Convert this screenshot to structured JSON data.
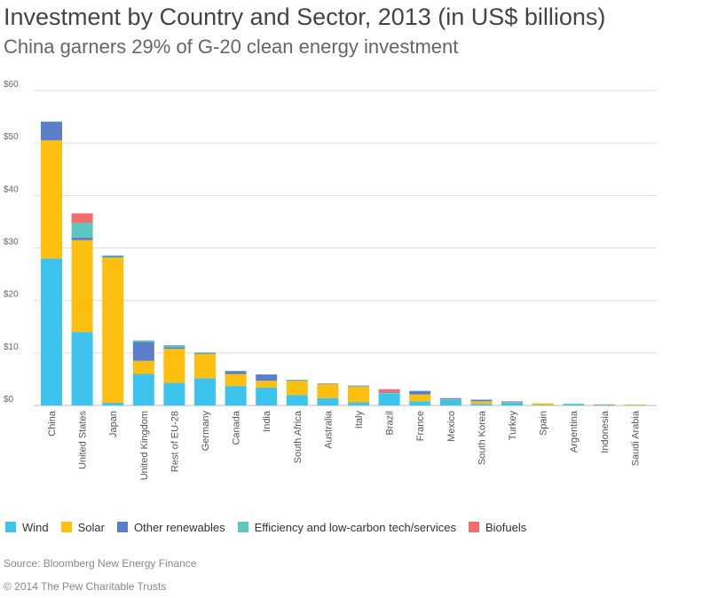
{
  "header": {
    "title": "Investment by Country and Sector, 2013 (in US$ billions)",
    "subtitle": "China garners 29% of G-20 clean energy investment"
  },
  "footer": {
    "source": "Source: Bloomberg New Energy Finance",
    "copyright": "© 2014 The Pew Charitable Trusts"
  },
  "colors": {
    "wind": "#3cc3ee",
    "solar": "#fcbf0f",
    "other": "#5a7ec9",
    "efficiency": "#5cc6bf",
    "biofuels": "#f26c6c"
  },
  "chart_data": {
    "type": "bar",
    "stacked": true,
    "categories": [
      "China",
      "United States",
      "Japan",
      "United Kingdom",
      "Rest of EU-28",
      "Germany",
      "Canada",
      "India",
      "South Africa",
      "Australia",
      "Italy",
      "Brazil",
      "France",
      "Mexico",
      "South Korea",
      "Turkey",
      "Spain",
      "Argentina",
      "Indonesia",
      "Saudi Arabia"
    ],
    "series": [
      {
        "name": "Wind",
        "color_key": "wind",
        "values": [
          28,
          14,
          0.5,
          6,
          4.3,
          5.2,
          3.7,
          3.4,
          2,
          1.4,
          0.6,
          2.3,
          0.8,
          1.1,
          0.3,
          0.6,
          0.1,
          0.3,
          0.05,
          0.05
        ]
      },
      {
        "name": "Solar",
        "color_key": "solar",
        "values": [
          22.5,
          17.5,
          27.7,
          2.5,
          6.5,
          4.6,
          2.3,
          1.3,
          2.7,
          2.7,
          3,
          0.1,
          1.3,
          0.1,
          0.5,
          0.1,
          0.3,
          0,
          0.1,
          0.15
        ]
      },
      {
        "name": "Other renewables",
        "color_key": "other",
        "values": [
          3.5,
          0.5,
          0.2,
          3.6,
          0.3,
          0.1,
          0.5,
          1.2,
          0.1,
          0.1,
          0.1,
          0.2,
          0.6,
          0.2,
          0.3,
          0.1,
          0,
          0,
          0.05,
          0
        ]
      },
      {
        "name": "Efficiency and low-carbon tech/services",
        "color_key": "efficiency",
        "values": [
          0.1,
          2.8,
          0.2,
          0.3,
          0.4,
          0.2,
          0.1,
          0,
          0.1,
          0,
          0.1,
          0,
          0.1,
          0,
          0,
          0,
          0,
          0,
          0,
          0
        ]
      },
      {
        "name": "Biofuels",
        "color_key": "biofuels",
        "values": [
          0,
          1.8,
          0,
          0,
          0,
          0,
          0,
          0,
          0,
          0,
          0,
          0.5,
          0,
          0,
          0,
          0,
          0,
          0,
          0,
          0
        ]
      }
    ],
    "y_ticks": [
      "$0",
      "$10",
      "$20",
      "$30",
      "$40",
      "$50",
      "$60"
    ],
    "ylim": [
      0,
      60
    ],
    "grid": true,
    "legend_position": "bottom"
  }
}
